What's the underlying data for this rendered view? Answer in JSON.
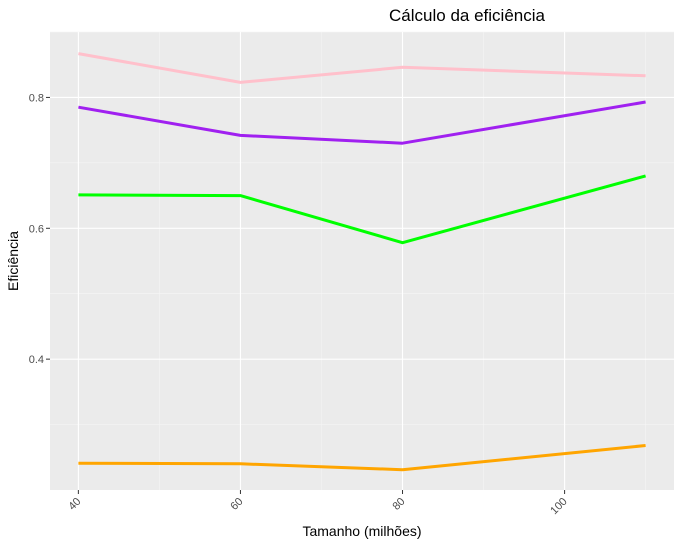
{
  "chart_data": {
    "type": "line",
    "title": "Cálculo da eficiência",
    "xlabel": "Tamanho (milhões)",
    "ylabel": "Eficiência",
    "x": [
      40,
      60,
      80,
      110
    ],
    "xlim": [
      36.5,
      113.5
    ],
    "ylim": [
      0.2,
      0.9
    ],
    "xticks": [
      40,
      60,
      80,
      100
    ],
    "yticks": [
      0.4,
      0.6,
      0.8
    ],
    "xtick_labels": [
      "40",
      "60",
      "80",
      "100"
    ],
    "ytick_labels": [
      "0.4",
      "0.6",
      "0.8"
    ],
    "grid": true,
    "legend": "none",
    "colors": {
      "panel_background": "#ebebeb",
      "grid_major": "#ffffff",
      "grid_minor": "#f5f5f5"
    },
    "series": [
      {
        "color": "#ffc0cb",
        "values": [
          0.867,
          0.823,
          0.846,
          0.833
        ]
      },
      {
        "color": "#a020f0",
        "values": [
          0.785,
          0.742,
          0.73,
          0.793
        ]
      },
      {
        "color": "#00ff00",
        "values": [
          0.651,
          0.65,
          0.578,
          0.68
        ]
      },
      {
        "color": "#ffa500",
        "values": [
          0.241,
          0.24,
          0.231,
          0.268
        ]
      }
    ]
  }
}
